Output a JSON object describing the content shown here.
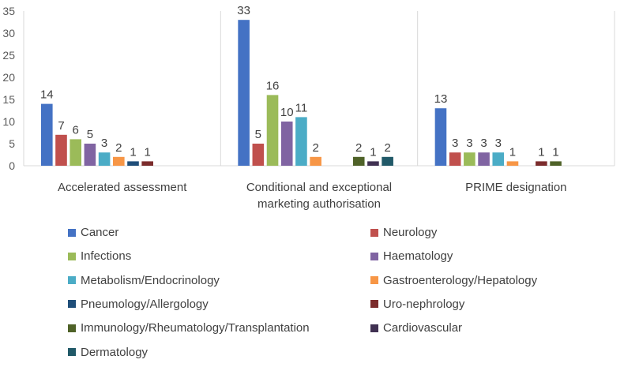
{
  "chart_data": {
    "type": "bar",
    "title": "",
    "xlabel": "",
    "ylabel": "",
    "ylim": [
      0,
      35
    ],
    "yticks": [
      "0",
      "5",
      "10",
      "15",
      "20",
      "25",
      "30",
      "35"
    ],
    "grid": false,
    "legend_position": "bottom",
    "categories": [
      "Accelerated assessment",
      "Conditional and exceptional marketing authorisation",
      "PRIME designation"
    ],
    "category_lines": [
      [
        "Accelerated assessment"
      ],
      [
        "Conditional and exceptional",
        "marketing authorisation"
      ],
      [
        "PRIME designation"
      ]
    ],
    "series": [
      {
        "name": "Cancer",
        "color": "#4472C4",
        "values": [
          14,
          33,
          13
        ]
      },
      {
        "name": "Neurology",
        "color": "#C0504D",
        "values": [
          7,
          5,
          3
        ]
      },
      {
        "name": "Infections",
        "color": "#9BBB59",
        "values": [
          6,
          16,
          3
        ]
      },
      {
        "name": "Haematology",
        "color": "#8064A2",
        "values": [
          5,
          10,
          3
        ]
      },
      {
        "name": "Metabolism/Endocrinology",
        "color": "#4BACC6",
        "values": [
          3,
          11,
          3
        ]
      },
      {
        "name": "Gastroenterology/Hepatology",
        "color": "#F79646",
        "values": [
          2,
          2,
          1
        ]
      },
      {
        "name": "Pneumology/Allergology",
        "color": "#1F4E79",
        "values": [
          1,
          null,
          null
        ]
      },
      {
        "name": "Uro-nephrology",
        "color": "#7B2C2C",
        "values": [
          1,
          null,
          1
        ]
      },
      {
        "name": "Immunology/Rheumatology/Transplantation",
        "color": "#4F6228",
        "values": [
          null,
          2,
          1
        ]
      },
      {
        "name": "Cardiovascular",
        "color": "#403152",
        "values": [
          null,
          1,
          null
        ]
      },
      {
        "name": "Dermatology",
        "color": "#215968",
        "values": [
          null,
          2,
          null
        ]
      }
    ]
  }
}
